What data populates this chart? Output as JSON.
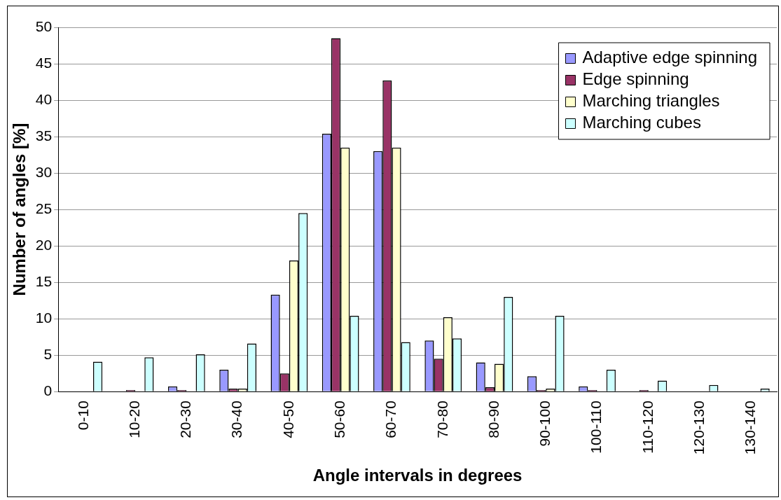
{
  "chart_data": {
    "type": "bar",
    "xlabel": "Angle intervals in degrees",
    "ylabel": "Number of angles [%]",
    "categories": [
      "0-10",
      "10-20",
      "20-30",
      "30-40",
      "40-50",
      "50-60",
      "60-70",
      "70-80",
      "80-90",
      "90-100",
      "100-110",
      "110-120",
      "120-130",
      "130-140"
    ],
    "series": [
      {
        "name": "Adaptive edge spinning",
        "color": "#9999ff",
        "values": [
          null,
          null,
          0.7,
          3,
          13.3,
          35.4,
          33,
          7,
          4,
          2.1,
          0.7,
          null,
          null,
          null
        ]
      },
      {
        "name": "Edge spinning",
        "color": "#993366",
        "values": [
          null,
          0.2,
          0.2,
          0.4,
          2.5,
          48.5,
          42.7,
          4.5,
          0.6,
          0.2,
          0.2,
          0.2,
          null,
          null
        ]
      },
      {
        "name": "Marching triangles",
        "color": "#ffffcc",
        "values": [
          null,
          null,
          null,
          0.4,
          18,
          33.5,
          33.5,
          10.2,
          3.8,
          0.4,
          null,
          null,
          null,
          null
        ]
      },
      {
        "name": "Marching cubes",
        "color": "#ccffff",
        "values": [
          4.1,
          4.7,
          5.1,
          6.6,
          24.5,
          10.4,
          6.8,
          7.3,
          13,
          10.4,
          3,
          1.5,
          0.9,
          0.4
        ]
      }
    ],
    "ylim": [
      0,
      50
    ],
    "yticks": [
      0,
      5,
      10,
      15,
      20,
      25,
      30,
      35,
      40,
      45,
      50
    ],
    "grid": "y",
    "legend": "top right"
  }
}
